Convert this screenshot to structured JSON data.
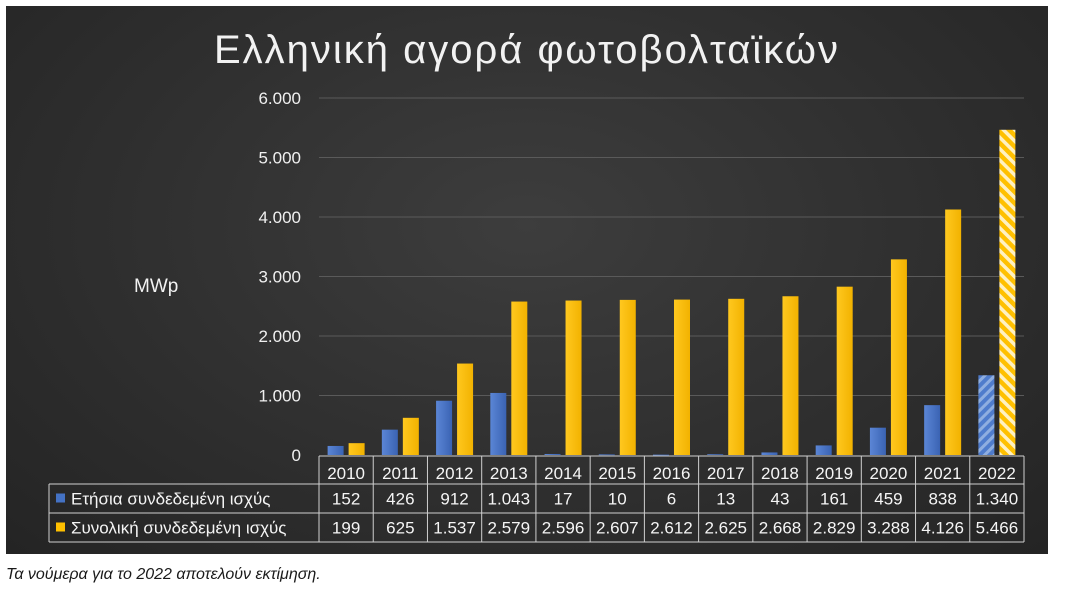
{
  "chart_data": {
    "type": "bar",
    "title": "Ελληνική αγορά φωτοβολταϊκών",
    "ylabel": "MWp",
    "xlabel": "",
    "ylim": [
      0,
      6000
    ],
    "y_ticks": [
      "0",
      "1.000",
      "2.000",
      "3.000",
      "4.000",
      "5.000",
      "6.000"
    ],
    "y_tick_values": [
      0,
      1000,
      2000,
      3000,
      4000,
      5000,
      6000
    ],
    "grid": true,
    "legend": "data-table",
    "categories": [
      "2010",
      "2011",
      "2012",
      "2013",
      "2014",
      "2015",
      "2016",
      "2017",
      "2018",
      "2019",
      "2020",
      "2021",
      "2022"
    ],
    "estimated_categories": [
      "2022"
    ],
    "series": [
      {
        "name": "Ετήσια συνδεδεμένη ισχύς",
        "color": "#4472c4",
        "values": [
          152,
          426,
          912,
          1043,
          17,
          10,
          6,
          13,
          43,
          161,
          459,
          838,
          1340
        ],
        "labels": [
          "152",
          "426",
          "912",
          "1.043",
          "17",
          "10",
          "6",
          "13",
          "43",
          "161",
          "459",
          "838",
          "1.340"
        ]
      },
      {
        "name": "Συνολική συνδεδεμένη ισχύς",
        "color": "#ffc000",
        "values": [
          199,
          625,
          1537,
          2579,
          2596,
          2607,
          2612,
          2625,
          2668,
          2829,
          3288,
          4126,
          5466
        ],
        "labels": [
          "199",
          "625",
          "1.537",
          "2.579",
          "2.596",
          "2.607",
          "2.612",
          "2.625",
          "2.668",
          "2.829",
          "3.288",
          "4.126",
          "5.466"
        ]
      }
    ]
  },
  "footnote": "Τα νούμερα για το 2022 αποτελούν εκτίμηση."
}
